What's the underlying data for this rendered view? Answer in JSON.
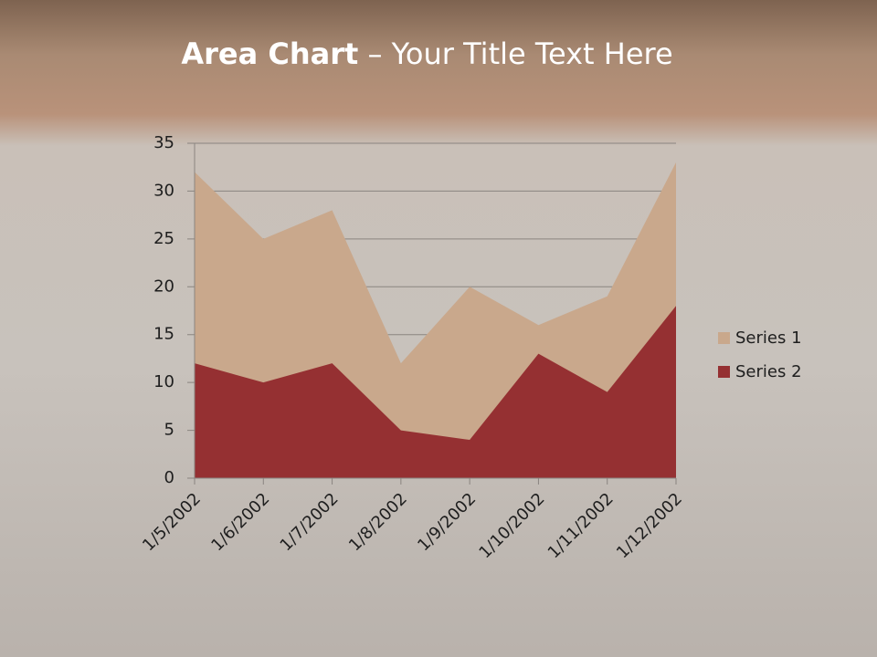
{
  "header": {
    "title_bold": "Area Chart",
    "title_rest": "– Your Title Text Here"
  },
  "chart_data": {
    "type": "area",
    "categories": [
      "1/5/2002",
      "1/6/2002",
      "1/7/2002",
      "1/8/2002",
      "1/9/2002",
      "1/10/2002",
      "1/11/2002",
      "1/12/2002"
    ],
    "series": [
      {
        "name": "Series 1",
        "color": "#c9a88c",
        "values": [
          32,
          25,
          28,
          12,
          20,
          16,
          19,
          33
        ]
      },
      {
        "name": "Series 2",
        "color": "#953032",
        "values": [
          12,
          10,
          12,
          5,
          4,
          13,
          9,
          18
        ]
      }
    ],
    "ylim": [
      0,
      35
    ],
    "yticks": [
      0,
      5,
      10,
      15,
      20,
      25,
      30,
      35
    ],
    "grid": true,
    "legend": "right"
  }
}
